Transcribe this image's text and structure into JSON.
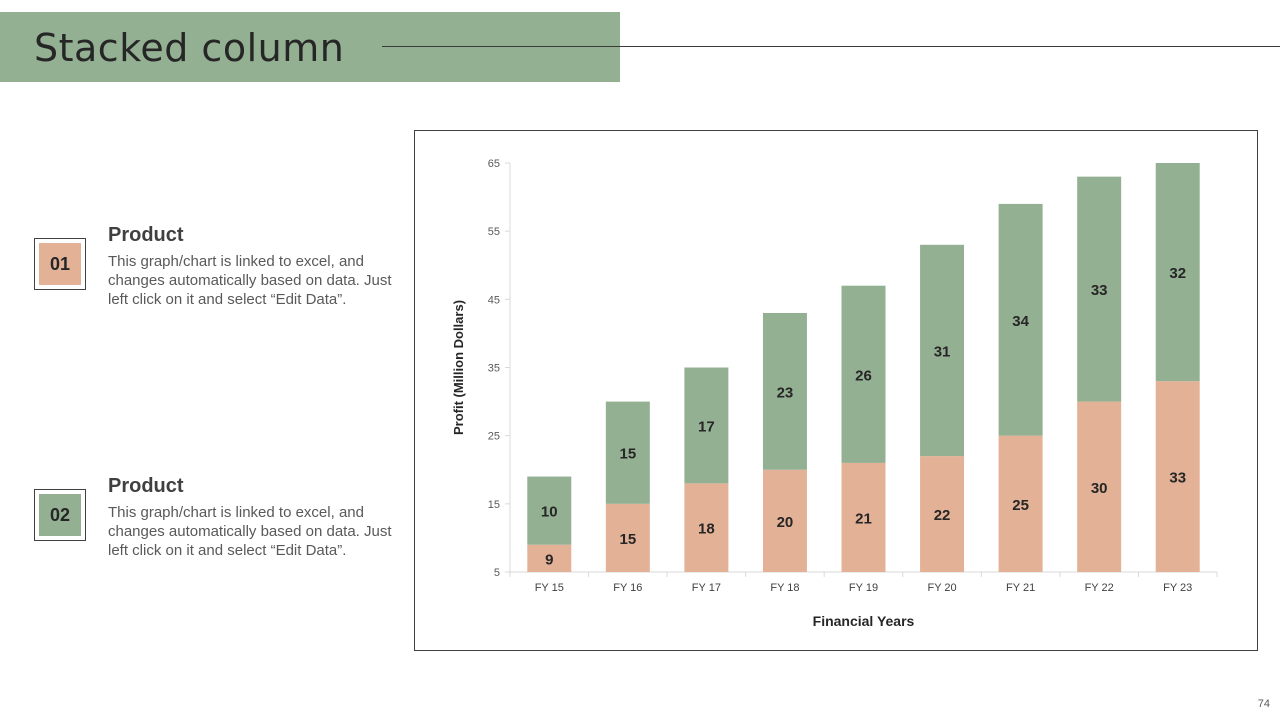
{
  "slide": {
    "title": "Stacked column",
    "page_number": "74"
  },
  "items": [
    {
      "number": "01",
      "heading": "Product",
      "text": "This graph/chart is linked to excel, and changes automatically based on data. Just left click on it and select “Edit Data”.",
      "color": "#e3b196"
    },
    {
      "number": "02",
      "heading": "Product",
      "text": "This graph/chart is linked to excel, and changes automatically based on data. Just left click on it and select “Edit Data”.",
      "color": "#94b092"
    }
  ],
  "chart_data": {
    "type": "bar",
    "stacked": true,
    "title": "",
    "xlabel": "Financial Years",
    "ylabel": "Profit (Million Dollars)",
    "categories": [
      "FY 15",
      "FY 16",
      "FY 17",
      "FY 18",
      "FY 19",
      "FY 20",
      "FY 21",
      "FY 22",
      "FY 23"
    ],
    "series": [
      {
        "name": "Product 01",
        "color": "#e3b196",
        "values": [
          9,
          15,
          18,
          20,
          21,
          22,
          25,
          30,
          33
        ]
      },
      {
        "name": "Product 02",
        "color": "#94b092",
        "values": [
          10,
          15,
          17,
          23,
          26,
          31,
          34,
          33,
          32
        ]
      }
    ],
    "ylim": [
      5,
      65
    ],
    "yticks": [
      5,
      15,
      25,
      35,
      45,
      55,
      65
    ],
    "grid": false,
    "legend": "none"
  }
}
